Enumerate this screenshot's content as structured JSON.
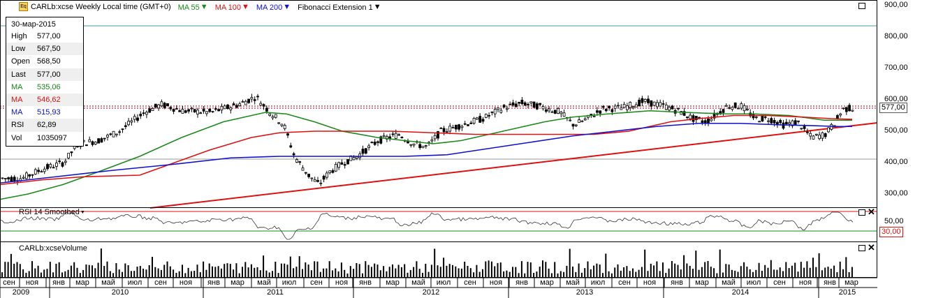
{
  "header": {
    "symbol_title": "CARLb:xcse Weekly Local time (GMT+0)",
    "ma55_label": "MA 55",
    "ma100_label": "MA 100",
    "ma200_label": "MA 200",
    "fib_label": "Fibonacci Extension 1"
  },
  "info": {
    "date": "30-мар-2015",
    "rows": [
      {
        "k": "High",
        "v": "577,00",
        "color": "#000000"
      },
      {
        "k": "Low",
        "v": "567,50",
        "color": "#000000"
      },
      {
        "k": "Open",
        "v": "568,50",
        "color": "#000000"
      },
      {
        "k": "Last",
        "v": "577,00",
        "color": "#000000"
      },
      {
        "k": "MA",
        "v": "535,06",
        "color": "#1a8a1a"
      },
      {
        "k": "MA",
        "v": "546,62",
        "color": "#e01010"
      },
      {
        "k": "MA",
        "v": "515,93",
        "color": "#1010d0"
      },
      {
        "k": "RSI",
        "v": "62,89",
        "color": "#000000"
      },
      {
        "k": "Vol",
        "v": "1035097",
        "color": "#000000"
      }
    ]
  },
  "price_axis": [
    "900,00",
    "800,00",
    "700,00",
    "600,00",
    "500,00",
    "400,00",
    "300,00"
  ],
  "last_price_tag": "577,00",
  "rsi_panel": {
    "title": "RSI 14 Smoothed",
    "ticks": [
      "50,00",
      "30,00"
    ]
  },
  "volume_panel": {
    "title": "CARLb:xcseVolume"
  },
  "time_axis": {
    "months": [
      {
        "t": "сен",
        "x": 13
      },
      {
        "t": "ноя",
        "x": 46
      },
      {
        "t": "янв",
        "x": 84
      },
      {
        "t": "мар",
        "x": 118
      },
      {
        "t": "май",
        "x": 155
      },
      {
        "t": "июл",
        "x": 193
      },
      {
        "t": "сен",
        "x": 230
      },
      {
        "t": "ноя",
        "x": 266
      },
      {
        "t": "янв",
        "x": 306
      },
      {
        "t": "мар",
        "x": 340
      },
      {
        "t": "май",
        "x": 378
      },
      {
        "t": "июл",
        "x": 414
      },
      {
        "t": "сен",
        "x": 453
      },
      {
        "t": "ноя",
        "x": 489
      },
      {
        "t": "янв",
        "x": 523
      },
      {
        "t": "мар",
        "x": 562
      },
      {
        "t": "май",
        "x": 599
      },
      {
        "t": "июл",
        "x": 635
      },
      {
        "t": "сен",
        "x": 673
      },
      {
        "t": "ноя",
        "x": 710
      },
      {
        "t": "янв",
        "x": 747
      },
      {
        "t": "мар",
        "x": 783
      },
      {
        "t": "май",
        "x": 820
      },
      {
        "t": "июл",
        "x": 856
      },
      {
        "t": "сен",
        "x": 894
      },
      {
        "t": "ноя",
        "x": 930
      },
      {
        "t": "янв",
        "x": 969
      },
      {
        "t": "мар",
        "x": 1005
      },
      {
        "t": "май",
        "x": 1043
      },
      {
        "t": "июл",
        "x": 1079
      },
      {
        "t": "сен",
        "x": 1116
      },
      {
        "t": "ноя",
        "x": 1153
      },
      {
        "t": "янв",
        "x": 1188
      },
      {
        "t": "мар",
        "x": 1219
      }
    ],
    "years": [
      {
        "t": "2009",
        "x": 30
      },
      {
        "t": "2010",
        "x": 172
      },
      {
        "t": "2011",
        "x": 394
      },
      {
        "t": "2012",
        "x": 617
      },
      {
        "t": "2013",
        "x": 837
      },
      {
        "t": "2014",
        "x": 1060
      },
      {
        "t": "2015",
        "x": 1213
      }
    ]
  },
  "colors": {
    "ma55": "#1a8a1a",
    "ma100": "#e01010",
    "ma200": "#1010d0",
    "fib_line": "#e01010"
  },
  "icons": [
    "maximize-icon",
    "close-icon",
    "instrument-logo-icon"
  ]
}
